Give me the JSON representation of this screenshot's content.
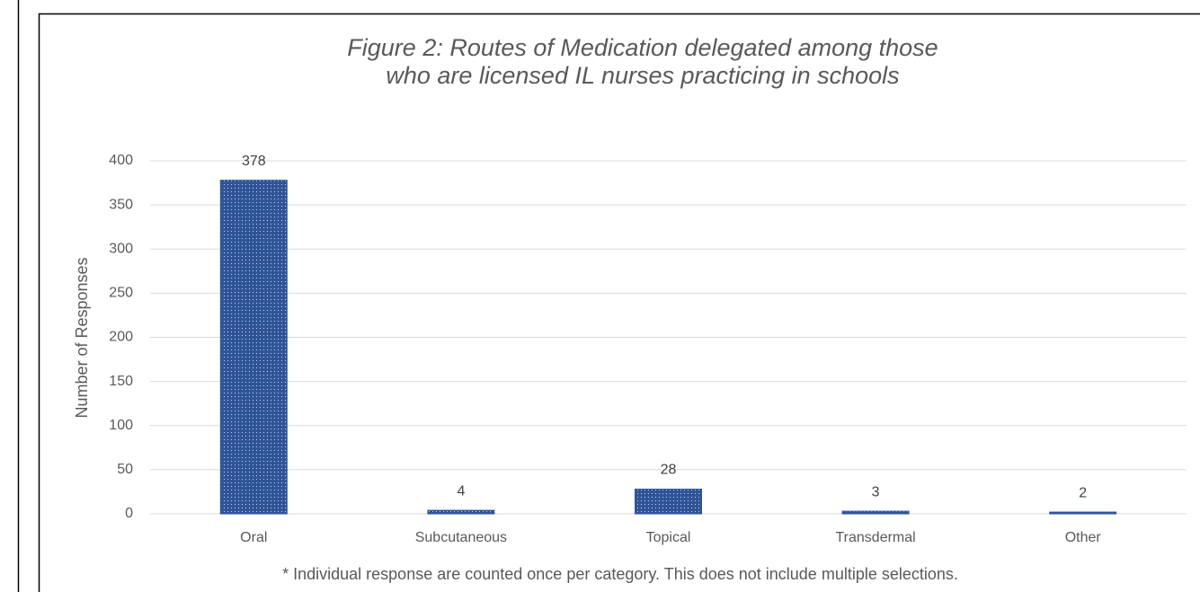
{
  "chart_data": {
    "type": "bar",
    "title": "Figure 2: Routes of Medication delegated among those who are licensed IL nurses practicing in schools",
    "y_label": "Number of Responses",
    "footnote": "* Individual response are counted once per category. This does not include multiple selections.",
    "categories": [
      "Oral",
      "Subcutaneous",
      "Topical",
      "Transdermal",
      "Other"
    ],
    "values": [
      378,
      4,
      28,
      3,
      2
    ],
    "color": "#2f5597",
    "ylim": [
      0,
      400
    ],
    "yticks": [
      0,
      50,
      100,
      150,
      200,
      250,
      300,
      350,
      400
    ],
    "grid": true
  }
}
